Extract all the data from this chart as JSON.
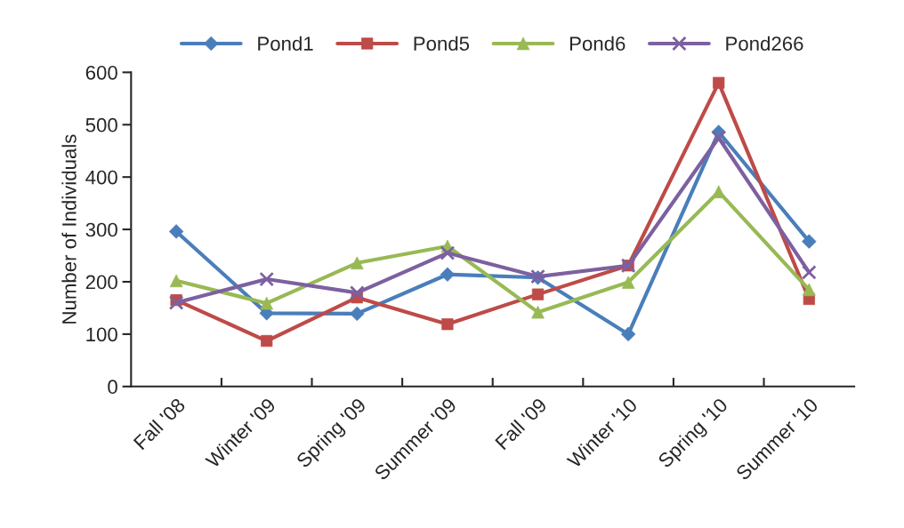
{
  "chart_data": {
    "type": "line",
    "ylabel": "Number of Individuals",
    "categories": [
      "Fall '08",
      "Winter '09",
      "Spring '09",
      "Summer '09",
      "Fall '09",
      "Winter '10",
      "Spring '10",
      "Summer '10"
    ],
    "series": [
      {
        "name": "Pond1",
        "color": "#4a7ebb",
        "marker": "diamond",
        "values": [
          296,
          140,
          139,
          214,
          208,
          100,
          486,
          277
        ]
      },
      {
        "name": "Pond5",
        "color": "#be4b48",
        "marker": "square",
        "values": [
          165,
          87,
          170,
          119,
          176,
          231,
          580,
          167
        ]
      },
      {
        "name": "Pond6",
        "color": "#98b954",
        "marker": "triangle",
        "values": [
          202,
          159,
          236,
          268,
          142,
          199,
          372,
          185
        ]
      },
      {
        "name": "Pond266",
        "color": "#7d60a0",
        "marker": "cross",
        "values": [
          160,
          205,
          179,
          255,
          210,
          231,
          475,
          218
        ]
      }
    ],
    "ylim": [
      0,
      600
    ],
    "yticks": [
      0,
      100,
      200,
      300,
      400,
      500,
      600
    ],
    "grid": false,
    "legend": "top"
  }
}
